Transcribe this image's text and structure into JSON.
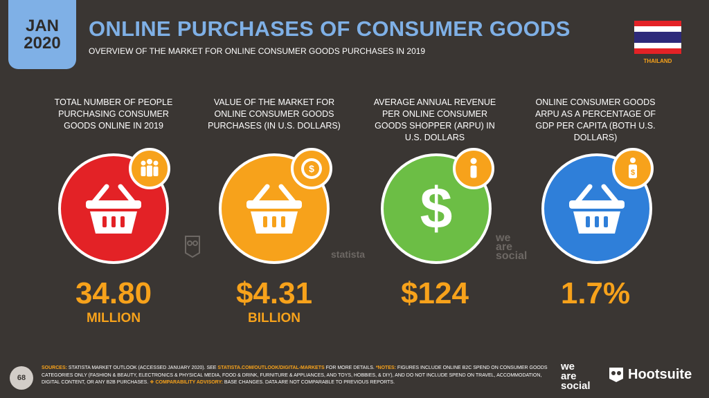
{
  "header": {
    "month": "JAN",
    "year": "2020",
    "title": "ONLINE PURCHASES OF CONSUMER GOODS",
    "subtitle": "OVERVIEW OF THE MARKET FOR ONLINE CONSUMER GOODS PURCHASES IN 2019",
    "country": "THAILAND"
  },
  "colors": {
    "red": "#e32226",
    "orange": "#f7a21b",
    "green": "#6cbe45",
    "blue": "#2f7fd9",
    "accent": "#7fb0e6"
  },
  "metrics": [
    {
      "label": "TOTAL NUMBER OF PEOPLE PURCHASING CONSUMER GOODS ONLINE IN 2019",
      "value": "34.80",
      "unit": "MILLION",
      "icon": "basket-icon",
      "badge_icon": "people-icon"
    },
    {
      "label": "VALUE OF THE MARKET FOR ONLINE CONSUMER GOODS PURCHASES (IN U.S. DOLLARS)",
      "value": "$4.31",
      "unit": "BILLION",
      "icon": "basket-icon",
      "badge_icon": "dollar-seal-icon"
    },
    {
      "label": "AVERAGE ANNUAL REVENUE PER ONLINE CONSUMER GOODS SHOPPER (ARPU) IN U.S. DOLLARS",
      "value": "$124",
      "unit": "",
      "icon": "dollar-icon",
      "badge_icon": "person-icon"
    },
    {
      "label": "ONLINE CONSUMER GOODS ARPU AS A PERCENTAGE OF GDP PER CAPITA (BOTH U.S. DOLLARS)",
      "value": "1.7%",
      "unit": "",
      "icon": "basket-icon",
      "badge_icon": "person-dollar-icon"
    }
  ],
  "watermarks": {
    "statista": "statista",
    "was1": "we",
    "was2": "are",
    "was3": "social"
  },
  "footer": {
    "page": "68",
    "sources_label": "SOURCES:",
    "sources_text1": " STATISTA MARKET OUTLOOK (ACCESSED JANUARY 2020). SEE ",
    "sources_link": "STATISTA.COM/OUTLOOK/DIGITAL-MARKETS",
    "sources_text2": " FOR MORE DETAILS. ",
    "notes_label": "*NOTES:",
    "notes_text": " FIGURES INCLUDE ONLINE B2C SPEND ON CONSUMER GOODS CATEGORIES ONLY (FASHION & BEAUTY, ELECTRONICS & PHYSICAL MEDIA, FOOD & DRINK, FURNITURE & APPLIANCES, AND TOYS, HOBBIES, & DIY), AND DO NOT INCLUDE SPEND ON TRAVEL, ACCOMMODATION, DIGITAL CONTENT, OR ANY B2B PURCHASES. ",
    "advisory_label": "❖ COMPARABILITY ADVISORY:",
    "advisory_text": " BASE CHANGES. DATA ARE NOT COMPARABLE TO PREVIOUS REPORTS.",
    "logo_we": "we",
    "logo_are": "are",
    "logo_social": "social",
    "hootsuite": "Hootsuite"
  }
}
